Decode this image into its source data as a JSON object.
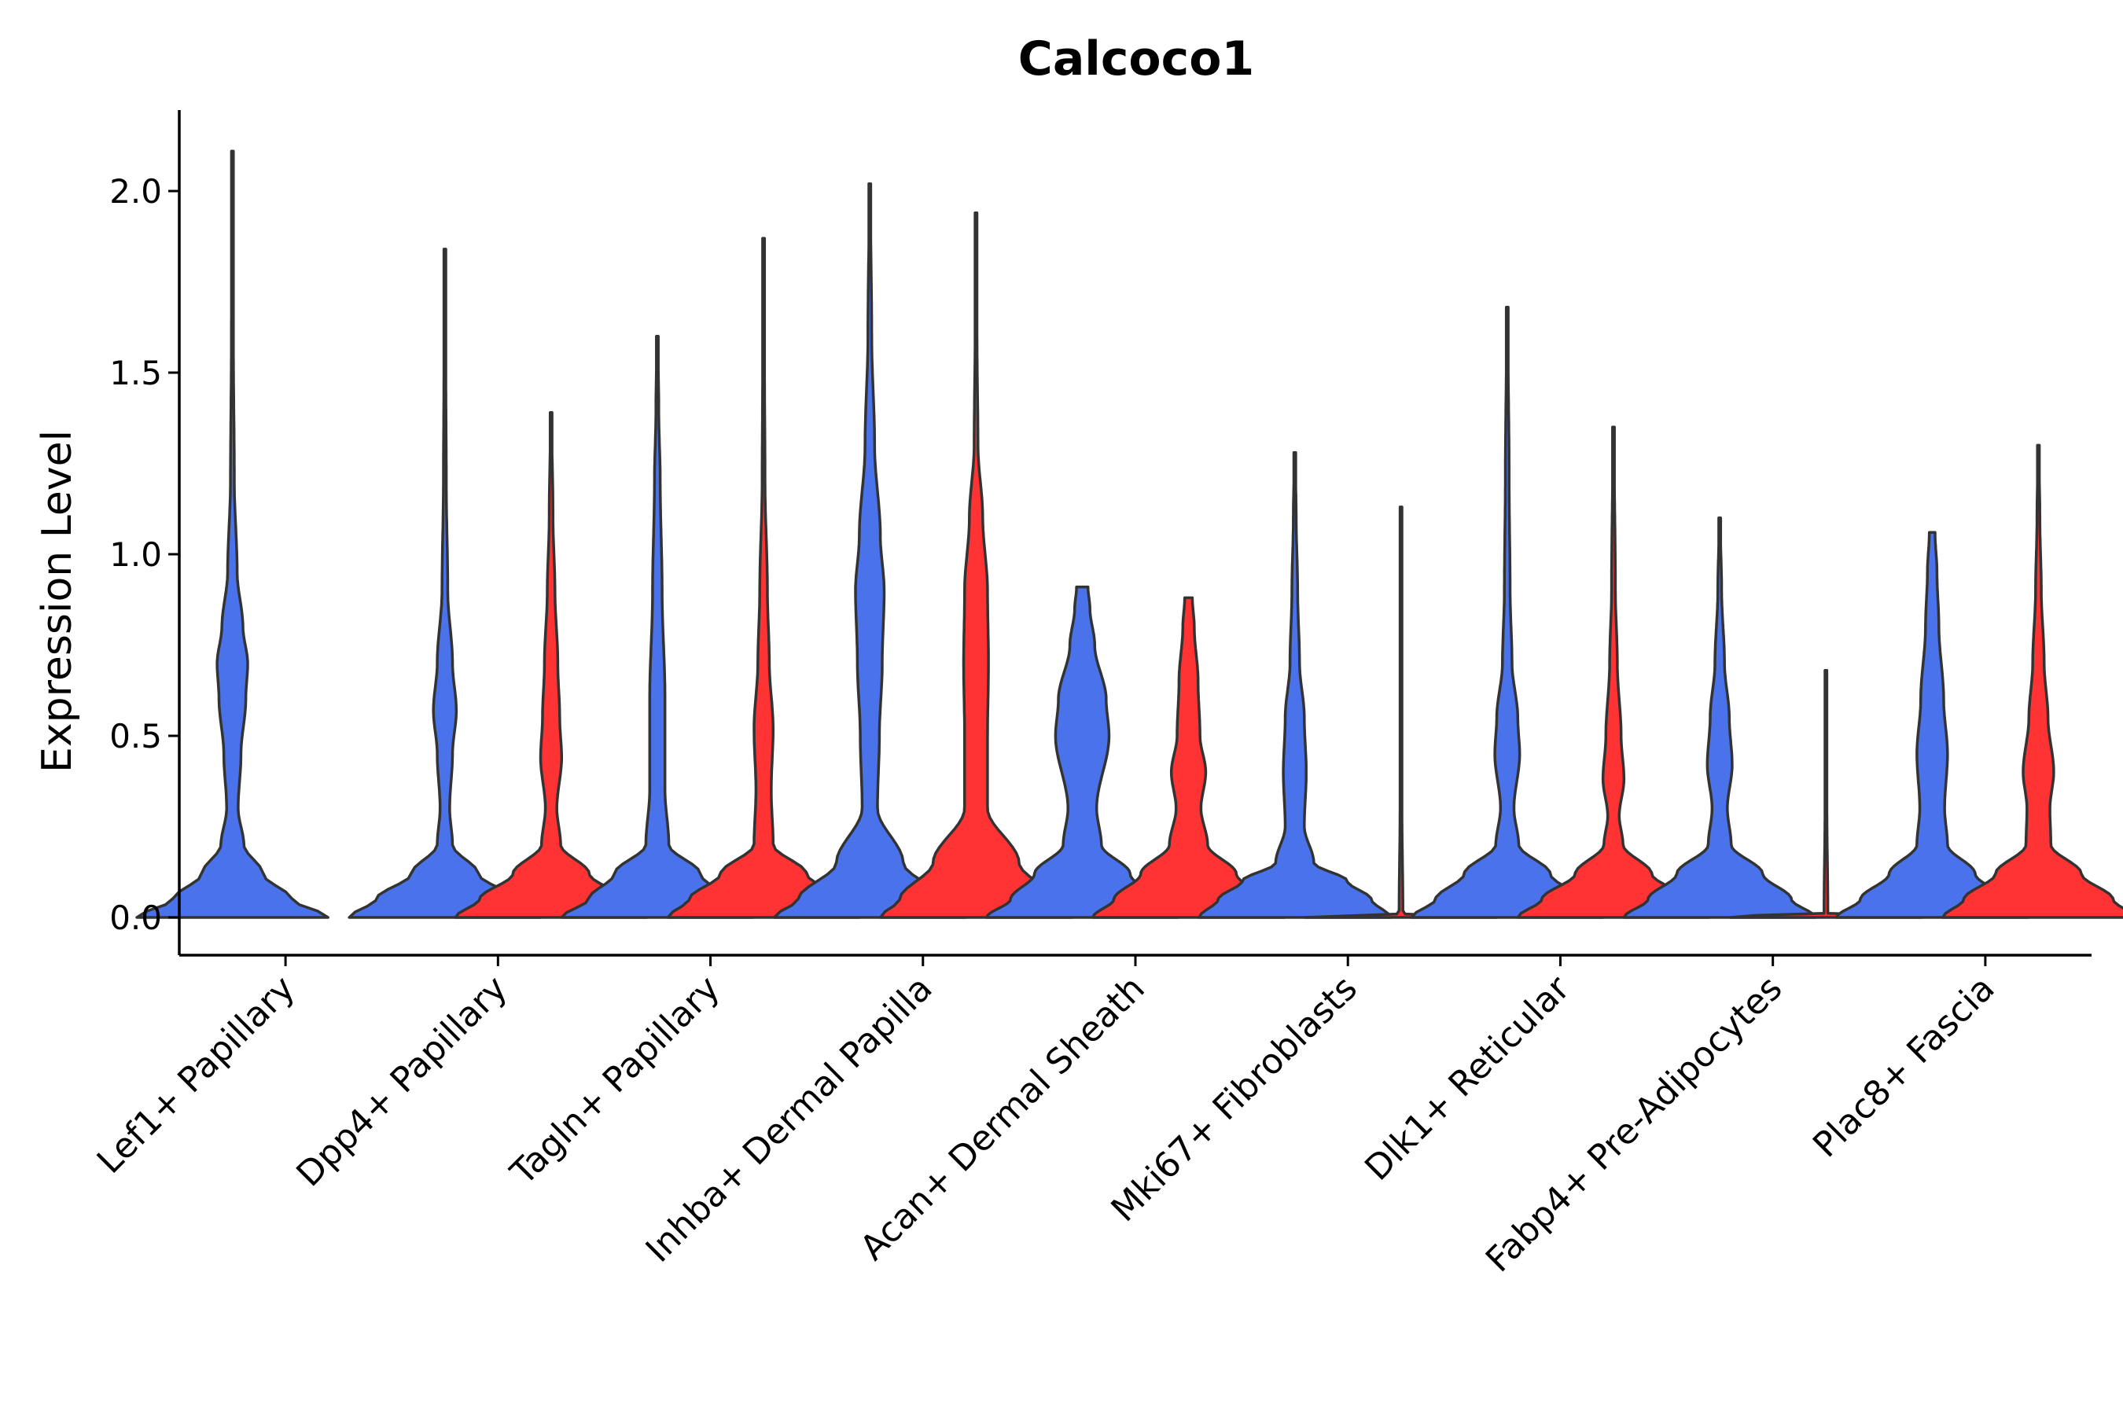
{
  "chart_data": {
    "type": "violin",
    "title": "Calcoco1",
    "xlabel": "",
    "ylabel": "Expression Level",
    "ylim": [
      -0.1,
      2.2
    ],
    "yticks": [
      0.0,
      0.5,
      1.0,
      1.5,
      2.0
    ],
    "ytick_labels": [
      "0.0",
      "0.5",
      "1.0",
      "1.5",
      "2.0"
    ],
    "series_colors": {
      "blue": "#4A73EB",
      "red": "#FF3333"
    },
    "legend": "none",
    "categories": [
      "Lef1+ Papillary",
      "Dpp4+ Papillary",
      "Tagln+ Papillary",
      "Inhba+ Dermal Papilla",
      "Acan+ Dermal Sheath",
      "Mki67+ Fibroblasts",
      "Dlk1+ Reticular",
      "Fabp4+ Pre-Adipocytes",
      "Plac8+ Fascia"
    ],
    "violins": [
      {
        "category": 0,
        "series": "blue",
        "max": 2.11,
        "profile": [
          [
            0.0,
            1.0
          ],
          [
            0.05,
            0.62
          ],
          [
            0.12,
            0.32
          ],
          [
            0.2,
            0.12
          ],
          [
            0.3,
            0.06
          ],
          [
            0.45,
            0.09
          ],
          [
            0.6,
            0.14
          ],
          [
            0.7,
            0.16
          ],
          [
            0.8,
            0.11
          ],
          [
            0.95,
            0.05
          ],
          [
            1.2,
            0.02
          ],
          [
            1.6,
            0.01
          ],
          [
            2.11,
            0.005
          ]
        ]
      },
      {
        "category": 1,
        "series": "blue",
        "max": 1.84,
        "profile": [
          [
            0.0,
            1.0
          ],
          [
            0.05,
            0.72
          ],
          [
            0.12,
            0.35
          ],
          [
            0.2,
            0.08
          ],
          [
            0.3,
            0.05
          ],
          [
            0.45,
            0.08
          ],
          [
            0.57,
            0.12
          ],
          [
            0.7,
            0.08
          ],
          [
            0.9,
            0.03
          ],
          [
            1.2,
            0.015
          ],
          [
            1.5,
            0.01
          ],
          [
            1.84,
            0.005
          ]
        ]
      },
      {
        "category": 1,
        "series": "red",
        "max": 1.39,
        "profile": [
          [
            0.0,
            1.0
          ],
          [
            0.05,
            0.75
          ],
          [
            0.12,
            0.4
          ],
          [
            0.2,
            0.1
          ],
          [
            0.3,
            0.06
          ],
          [
            0.44,
            0.11
          ],
          [
            0.55,
            0.09
          ],
          [
            0.7,
            0.07
          ],
          [
            0.9,
            0.04
          ],
          [
            1.1,
            0.02
          ],
          [
            1.39,
            0.005
          ]
        ]
      },
      {
        "category": 2,
        "series": "blue",
        "max": 1.6,
        "profile": [
          [
            0.0,
            1.0
          ],
          [
            0.05,
            0.72
          ],
          [
            0.12,
            0.45
          ],
          [
            0.2,
            0.12
          ],
          [
            0.35,
            0.08
          ],
          [
            0.6,
            0.08
          ],
          [
            0.9,
            0.05
          ],
          [
            1.2,
            0.03
          ],
          [
            1.4,
            0.015
          ],
          [
            1.6,
            0.005
          ]
        ]
      },
      {
        "category": 2,
        "series": "red",
        "max": 1.87,
        "profile": [
          [
            0.0,
            1.0
          ],
          [
            0.05,
            0.78
          ],
          [
            0.12,
            0.45
          ],
          [
            0.2,
            0.1
          ],
          [
            0.35,
            0.08
          ],
          [
            0.52,
            0.1
          ],
          [
            0.7,
            0.06
          ],
          [
            0.9,
            0.04
          ],
          [
            1.2,
            0.015
          ],
          [
            1.5,
            0.01
          ],
          [
            1.87,
            0.005
          ]
        ]
      },
      {
        "category": 3,
        "series": "blue",
        "max": 2.02,
        "profile": [
          [
            0.0,
            1.0
          ],
          [
            0.05,
            0.75
          ],
          [
            0.15,
            0.35
          ],
          [
            0.3,
            0.08
          ],
          [
            0.5,
            0.1
          ],
          [
            0.7,
            0.13
          ],
          [
            0.9,
            0.15
          ],
          [
            1.05,
            0.11
          ],
          [
            1.3,
            0.05
          ],
          [
            1.6,
            0.02
          ],
          [
            2.02,
            0.005
          ]
        ]
      },
      {
        "category": 3,
        "series": "red",
        "max": 1.94,
        "profile": [
          [
            0.0,
            1.0
          ],
          [
            0.05,
            0.8
          ],
          [
            0.15,
            0.45
          ],
          [
            0.3,
            0.12
          ],
          [
            0.5,
            0.12
          ],
          [
            0.7,
            0.13
          ],
          [
            0.9,
            0.12
          ],
          [
            1.1,
            0.07
          ],
          [
            1.3,
            0.02
          ],
          [
            1.6,
            0.01
          ],
          [
            1.94,
            0.005
          ]
        ]
      },
      {
        "category": 4,
        "series": "blue",
        "max": 0.91,
        "profile": [
          [
            0.0,
            1.0
          ],
          [
            0.05,
            0.75
          ],
          [
            0.12,
            0.5
          ],
          [
            0.2,
            0.2
          ],
          [
            0.3,
            0.15
          ],
          [
            0.5,
            0.28
          ],
          [
            0.6,
            0.25
          ],
          [
            0.75,
            0.13
          ],
          [
            0.85,
            0.08
          ],
          [
            0.91,
            0.06
          ]
        ]
      },
      {
        "category": 4,
        "series": "red",
        "max": 0.88,
        "profile": [
          [
            0.0,
            1.0
          ],
          [
            0.05,
            0.78
          ],
          [
            0.12,
            0.5
          ],
          [
            0.2,
            0.2
          ],
          [
            0.3,
            0.13
          ],
          [
            0.4,
            0.18
          ],
          [
            0.5,
            0.12
          ],
          [
            0.65,
            0.1
          ],
          [
            0.8,
            0.06
          ],
          [
            0.88,
            0.04
          ]
        ]
      },
      {
        "category": 5,
        "series": "blue",
        "max": 1.28,
        "profile": [
          [
            0.0,
            1.0
          ],
          [
            0.05,
            0.8
          ],
          [
            0.1,
            0.55
          ],
          [
            0.15,
            0.2
          ],
          [
            0.25,
            0.1
          ],
          [
            0.4,
            0.12
          ],
          [
            0.55,
            0.1
          ],
          [
            0.7,
            0.05
          ],
          [
            0.9,
            0.03
          ],
          [
            1.1,
            0.015
          ],
          [
            1.28,
            0.005
          ]
        ]
      },
      {
        "category": 5,
        "series": "red",
        "max": 1.13,
        "profile": [
          [
            0.0,
            1.0
          ],
          [
            0.004,
            0.9
          ],
          [
            0.01,
            0.02
          ],
          [
            0.3,
            0.01
          ],
          [
            0.7,
            0.008
          ],
          [
            1.13,
            0.005
          ]
        ]
      },
      {
        "category": 6,
        "series": "blue",
        "max": 1.68,
        "profile": [
          [
            0.0,
            1.0
          ],
          [
            0.05,
            0.75
          ],
          [
            0.12,
            0.45
          ],
          [
            0.2,
            0.12
          ],
          [
            0.3,
            0.07
          ],
          [
            0.45,
            0.13
          ],
          [
            0.55,
            0.11
          ],
          [
            0.7,
            0.05
          ],
          [
            0.9,
            0.03
          ],
          [
            1.2,
            0.02
          ],
          [
            1.68,
            0.005
          ]
        ]
      },
      {
        "category": 6,
        "series": "red",
        "max": 1.35,
        "profile": [
          [
            0.0,
            1.0
          ],
          [
            0.05,
            0.75
          ],
          [
            0.12,
            0.4
          ],
          [
            0.2,
            0.1
          ],
          [
            0.28,
            0.06
          ],
          [
            0.38,
            0.11
          ],
          [
            0.5,
            0.08
          ],
          [
            0.7,
            0.04
          ],
          [
            0.9,
            0.02
          ],
          [
            1.35,
            0.005
          ]
        ]
      },
      {
        "category": 7,
        "series": "blue",
        "max": 1.1,
        "profile": [
          [
            0.0,
            1.0
          ],
          [
            0.05,
            0.75
          ],
          [
            0.12,
            0.45
          ],
          [
            0.2,
            0.12
          ],
          [
            0.3,
            0.08
          ],
          [
            0.42,
            0.13
          ],
          [
            0.55,
            0.1
          ],
          [
            0.7,
            0.05
          ],
          [
            0.9,
            0.02
          ],
          [
            1.1,
            0.005
          ]
        ]
      },
      {
        "category": 7,
        "series": "red",
        "max": 0.68,
        "profile": [
          [
            0.0,
            1.0
          ],
          [
            0.004,
            0.9
          ],
          [
            0.01,
            0.02
          ],
          [
            0.3,
            0.01
          ],
          [
            0.5,
            0.01
          ],
          [
            0.68,
            0.005
          ]
        ]
      },
      {
        "category": 8,
        "series": "blue",
        "max": 1.06,
        "profile": [
          [
            0.0,
            1.0
          ],
          [
            0.05,
            0.75
          ],
          [
            0.12,
            0.45
          ],
          [
            0.2,
            0.16
          ],
          [
            0.3,
            0.13
          ],
          [
            0.45,
            0.16
          ],
          [
            0.6,
            0.12
          ],
          [
            0.8,
            0.07
          ],
          [
            0.95,
            0.05
          ],
          [
            1.06,
            0.03
          ]
        ]
      },
      {
        "category": 8,
        "series": "red",
        "max": 1.3,
        "profile": [
          [
            0.0,
            1.0
          ],
          [
            0.05,
            0.78
          ],
          [
            0.12,
            0.45
          ],
          [
            0.2,
            0.13
          ],
          [
            0.3,
            0.12
          ],
          [
            0.4,
            0.16
          ],
          [
            0.55,
            0.1
          ],
          [
            0.7,
            0.06
          ],
          [
            0.9,
            0.03
          ],
          [
            1.1,
            0.015
          ],
          [
            1.3,
            0.005
          ]
        ]
      }
    ]
  }
}
